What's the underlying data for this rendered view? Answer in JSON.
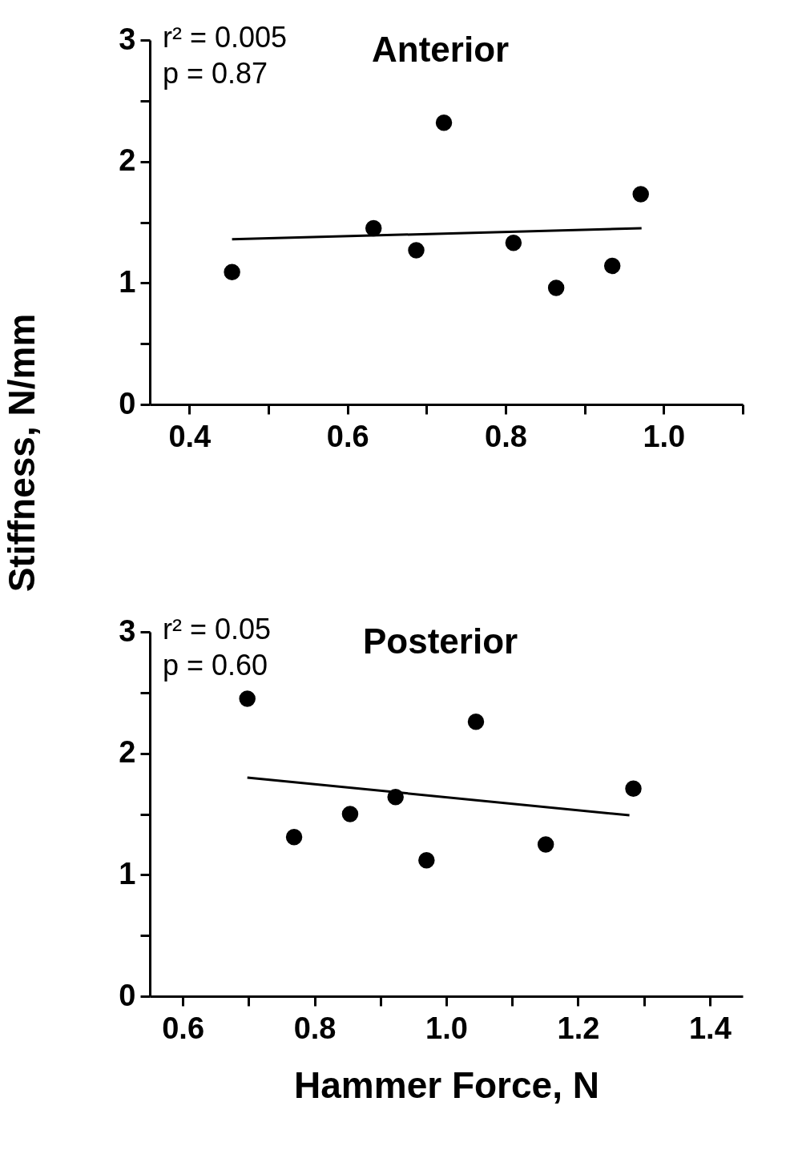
{
  "chart_data": [
    {
      "type": "scatter",
      "title": "Anterior",
      "ylabel": "Stiffness, N/mm",
      "annotations": [
        "r² = 0.005",
        "p = 0.87"
      ],
      "xlim": [
        0.35,
        1.1
      ],
      "xticks": [
        0.4,
        {
          "value": 0.5,
          "label": null
        },
        0.6,
        {
          "value": 0.7,
          "label": null
        },
        0.8,
        {
          "value": 0.9,
          "label": null
        },
        {
          "value": 1.0,
          "label": "1.0"
        },
        {
          "value": 1.1,
          "label": null
        }
      ],
      "ylim": [
        0,
        3
      ],
      "yticks": [
        0,
        {
          "value": 0.5,
          "label": null
        },
        1,
        {
          "value": 1.5,
          "label": null
        },
        2,
        {
          "value": 2.5,
          "label": null
        },
        3
      ],
      "grid": false,
      "series": [
        {
          "marker": "circle",
          "color": "#000000",
          "x": [
            0.454,
            0.633,
            0.687,
            0.722,
            0.81,
            0.864,
            0.935,
            0.971
          ],
          "values": [
            1.09,
            1.45,
            1.27,
            2.32,
            1.33,
            0.96,
            1.14,
            1.73
          ]
        },
        {
          "type": "line",
          "color": "#000000",
          "x": [
            0.454,
            0.972
          ],
          "values": [
            1.36,
            1.45
          ]
        }
      ]
    },
    {
      "type": "scatter",
      "title": "Posterior",
      "xlabel": "Hammer Force, N",
      "annotations": [
        "r² = 0.05",
        "p = 0.60"
      ],
      "xlim": [
        0.55,
        1.45
      ],
      "xticks": [
        0.6,
        {
          "value": 0.7,
          "label": null
        },
        0.8,
        {
          "value": 0.9,
          "label": null
        },
        {
          "value": 1.0,
          "label": "1.0"
        },
        {
          "value": 1.1,
          "label": null
        },
        1.2,
        {
          "value": 1.3,
          "label": null
        },
        1.4
      ],
      "ylim": [
        0,
        3
      ],
      "yticks": [
        0,
        {
          "value": 0.5,
          "label": null
        },
        1,
        {
          "value": 1.5,
          "label": null
        },
        2,
        {
          "value": 2.5,
          "label": null
        },
        3
      ],
      "grid": false,
      "series": [
        {
          "marker": "circle",
          "color": "#000000",
          "x": [
            0.698,
            0.769,
            0.854,
            0.923,
            0.97,
            1.045,
            1.151,
            1.284
          ],
          "values": [
            2.45,
            1.31,
            1.5,
            1.64,
            1.12,
            2.26,
            1.25,
            1.71
          ]
        },
        {
          "type": "line",
          "color": "#000000",
          "x": [
            0.698,
            1.278
          ],
          "values": [
            1.8,
            1.49
          ]
        }
      ]
    }
  ]
}
